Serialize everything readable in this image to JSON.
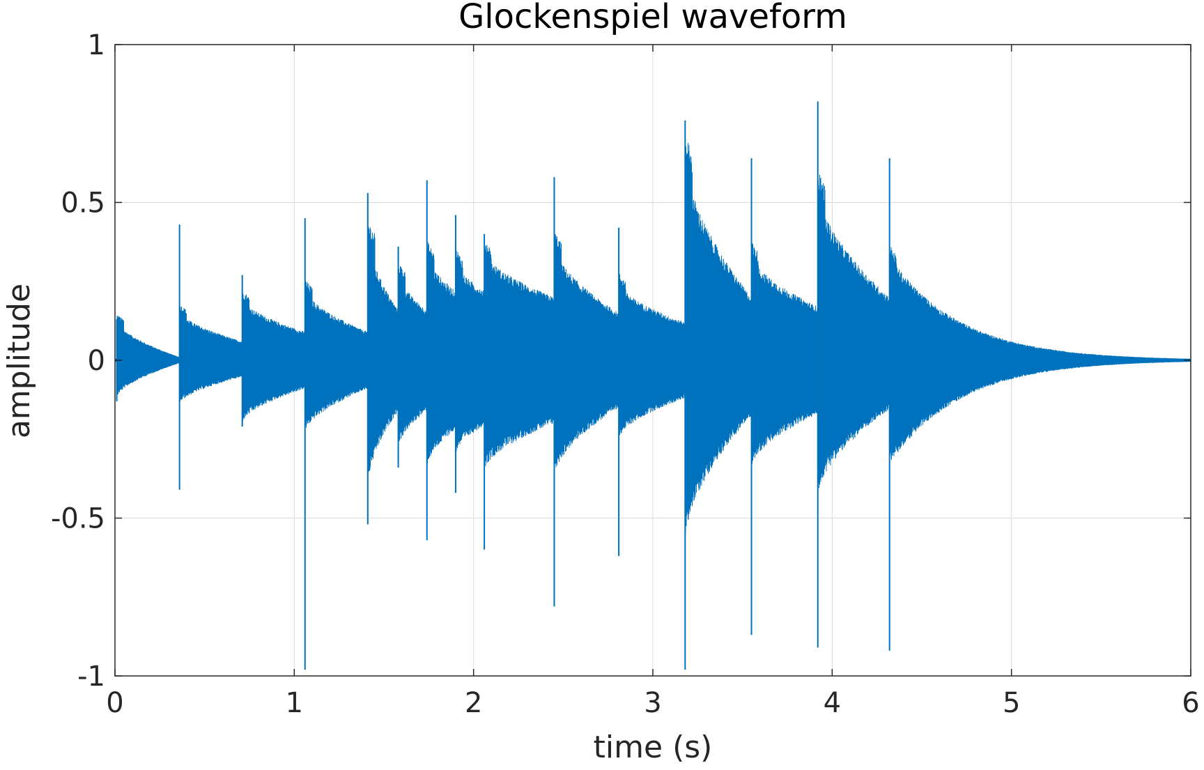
{
  "chart_data": {
    "type": "line",
    "title": "Glockenspiel waveform",
    "xlabel": "time (s)",
    "ylabel": "amplitude",
    "xlim": [
      0,
      6
    ],
    "ylim": [
      -1,
      1
    ],
    "xticks": [
      0,
      1,
      2,
      3,
      4,
      5,
      6
    ],
    "xtick_labels": [
      "0",
      "1",
      "2",
      "3",
      "4",
      "5",
      "6"
    ],
    "yticks": [
      -1,
      -0.5,
      0,
      0.5,
      1
    ],
    "ytick_labels": [
      "-1",
      "-0.5",
      "0",
      "0.5",
      "1"
    ],
    "grid": true,
    "colors": {
      "series": "#0072BD",
      "axis": "#262626",
      "grid": "#dcdcdc"
    },
    "series": [
      {
        "values_description_free": true,
        "onsets": [
          {
            "t": 0.01,
            "pos_peak": 0.13,
            "neg_peak": -0.13,
            "pos_env": 0.13,
            "neg_env": -0.12,
            "decay_to": 0.01
          },
          {
            "t": 0.36,
            "pos_peak": 0.43,
            "neg_peak": -0.41,
            "pos_env": 0.16,
            "neg_env": -0.14,
            "decay_to": 0.06
          },
          {
            "t": 0.71,
            "pos_peak": 0.27,
            "neg_peak": -0.21,
            "pos_env": 0.2,
            "neg_env": -0.2,
            "decay_to": 0.09
          },
          {
            "t": 1.06,
            "pos_peak": 0.45,
            "neg_peak": -0.98,
            "pos_env": 0.23,
            "neg_env": -0.23,
            "decay_to": 0.09
          },
          {
            "t": 1.41,
            "pos_peak": 0.53,
            "neg_peak": -0.52,
            "pos_env": 0.4,
            "neg_env": -0.4,
            "decay_to": 0.16
          },
          {
            "t": 1.58,
            "pos_peak": 0.36,
            "neg_peak": -0.34,
            "pos_env": 0.28,
            "neg_env": -0.28,
            "decay_to": 0.16
          },
          {
            "t": 1.74,
            "pos_peak": 0.57,
            "neg_peak": -0.57,
            "pos_env": 0.34,
            "neg_env": -0.34,
            "decay_to": 0.22
          },
          {
            "t": 1.9,
            "pos_peak": 0.46,
            "neg_peak": -0.42,
            "pos_env": 0.32,
            "neg_env": -0.3,
            "decay_to": 0.22
          },
          {
            "t": 2.06,
            "pos_peak": 0.4,
            "neg_peak": -0.6,
            "pos_env": 0.35,
            "neg_env": -0.35,
            "decay_to": 0.2
          },
          {
            "t": 2.45,
            "pos_peak": 0.58,
            "neg_peak": -0.78,
            "pos_env": 0.37,
            "neg_env": -0.37,
            "decay_to": 0.15
          },
          {
            "t": 2.81,
            "pos_peak": 0.42,
            "neg_peak": -0.62,
            "pos_env": 0.25,
            "neg_env": -0.25,
            "decay_to": 0.12
          },
          {
            "t": 3.18,
            "pos_peak": 0.76,
            "neg_peak": -0.98,
            "pos_env": 0.65,
            "neg_env": -0.57,
            "decay_to": 0.2
          },
          {
            "t": 3.55,
            "pos_peak": 0.64,
            "neg_peak": -0.87,
            "pos_env": 0.34,
            "neg_env": -0.34,
            "decay_to": 0.17
          },
          {
            "t": 3.92,
            "pos_peak": 0.82,
            "neg_peak": -0.91,
            "pos_env": 0.55,
            "neg_env": -0.43,
            "decay_to": 0.2
          },
          {
            "t": 4.32,
            "pos_peak": 0.64,
            "neg_peak": -0.92,
            "pos_env": 0.33,
            "neg_env": -0.33,
            "decay_to": 0.005
          }
        ],
        "end_time": 6.0
      }
    ]
  }
}
